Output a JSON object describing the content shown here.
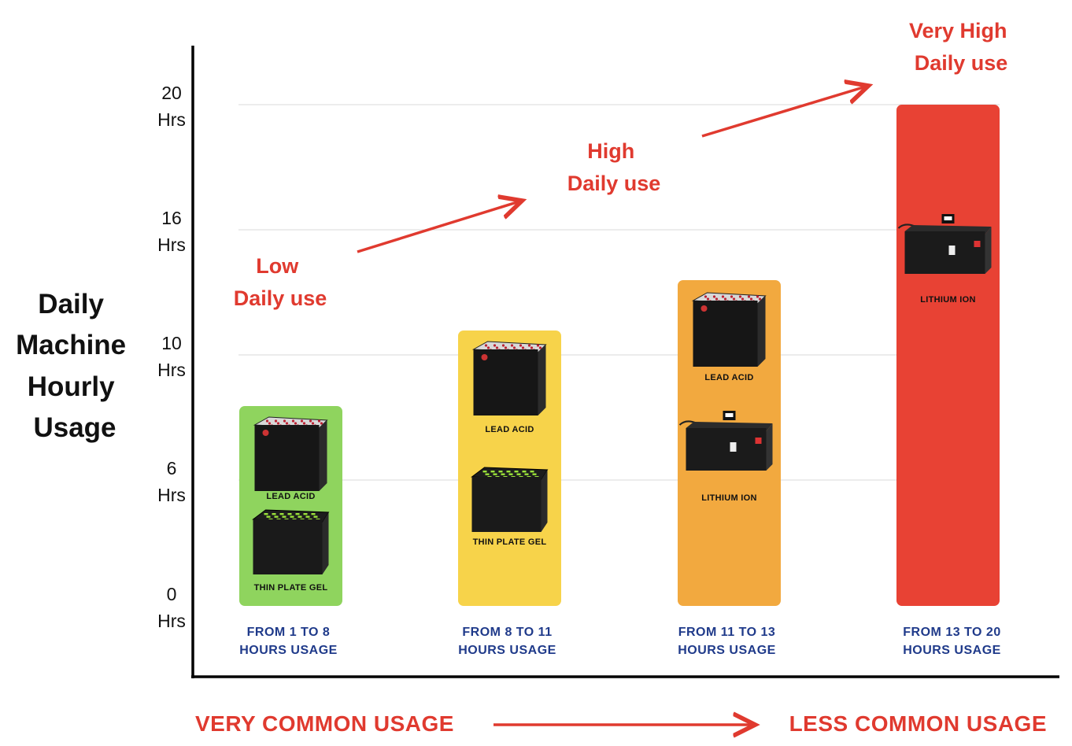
{
  "chart_data": {
    "type": "bar",
    "ylabel_lines": [
      "Daily",
      "Machine",
      "Hourly",
      "Usage"
    ],
    "y_ticks": [
      {
        "value": 0,
        "line1": "0",
        "line2": "Hrs"
      },
      {
        "value": 6,
        "line1": "6",
        "line2": "Hrs"
      },
      {
        "value": 10,
        "line1": "10",
        "line2": "Hrs"
      },
      {
        "value": 16,
        "line1": "16",
        "line2": "Hrs"
      },
      {
        "value": 20,
        "line1": "20",
        "line2": "Hrs"
      }
    ],
    "grid": true,
    "categories": [
      {
        "line1": "FROM 1 TO 8",
        "line2": "HOURS USAGE"
      },
      {
        "line1": "FROM 8 TO 11",
        "line2": "HOURS USAGE"
      },
      {
        "line1": "FROM 11 TO 13",
        "line2": "HOURS USAGE"
      },
      {
        "line1": "FROM 13 TO 20",
        "line2": "HOURS USAGE"
      }
    ],
    "values": [
      8,
      11,
      13,
      20
    ],
    "bar_colors": [
      "#8fd45e",
      "#f7d34a",
      "#f2a93f",
      "#e84234"
    ],
    "battery_labels": [
      [
        "LEAD ACID",
        "THIN PLATE GEL"
      ],
      [
        "LEAD ACID",
        "THIN PLATE GEL"
      ],
      [
        "LEAD ACID",
        "LITHIUM ION"
      ],
      [
        "LITHIUM ION"
      ]
    ],
    "annotations": [
      {
        "line1": "Low",
        "line2": "Daily use"
      },
      {
        "line1": "High",
        "line2": "Daily use"
      },
      {
        "line1": "Very High",
        "line2": "Daily use"
      }
    ],
    "bottom_left": "VERY COMMON USAGE",
    "bottom_right": "LESS COMMON USAGE",
    "accent_color": "#e03a2f"
  }
}
